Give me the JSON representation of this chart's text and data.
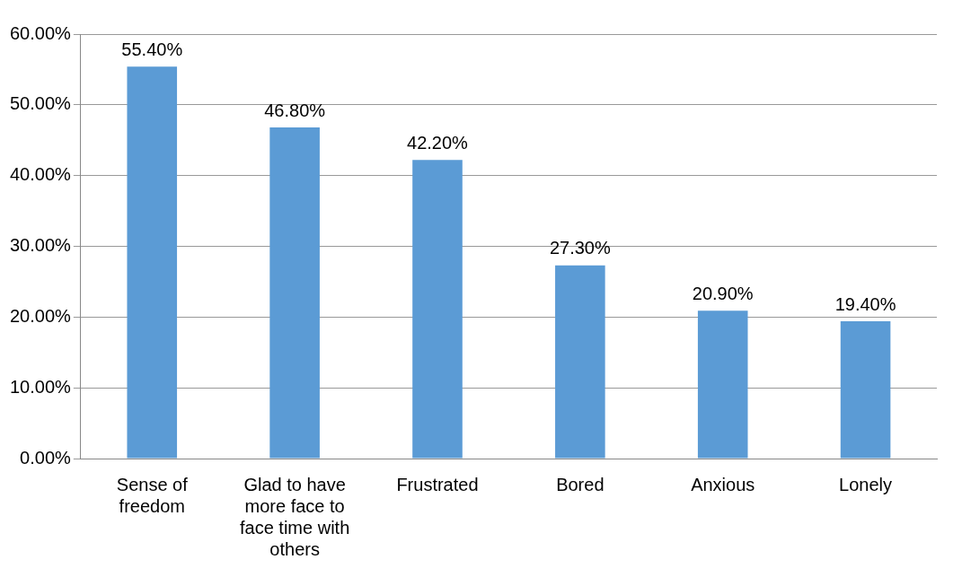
{
  "chart_data": {
    "type": "bar",
    "categories": [
      "Sense of freedom",
      "Glad to have more face to face time with others",
      "Frustrated",
      "Bored",
      "Anxious",
      "Lonely"
    ],
    "values": [
      55.4,
      46.8,
      42.2,
      27.3,
      20.9,
      19.4
    ],
    "value_labels": [
      "55.40%",
      "46.80%",
      "42.20%",
      "27.30%",
      "20.90%",
      "19.40%"
    ],
    "color": "#5b9bd5",
    "ylim": [
      0,
      60
    ],
    "yticks": [
      {
        "value": 0,
        "label": "0.00%"
      },
      {
        "value": 10,
        "label": "10.00%"
      },
      {
        "value": 20,
        "label": "20.00%"
      },
      {
        "value": 30,
        "label": "30.00%"
      },
      {
        "value": 40,
        "label": "40.00%"
      },
      {
        "value": 50,
        "label": "50.00%"
      },
      {
        "value": 60,
        "label": "60.00%"
      }
    ],
    "grid": "y",
    "legend": false
  }
}
